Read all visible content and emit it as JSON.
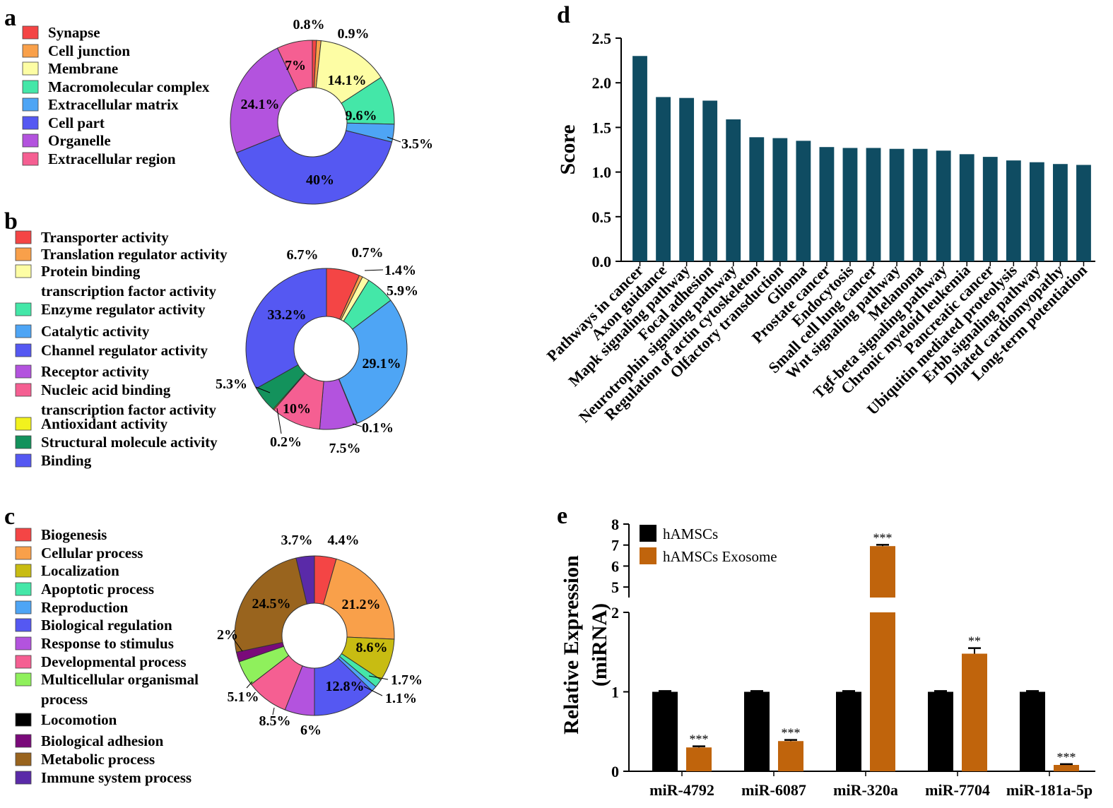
{
  "figure": {
    "panel_labels": [
      "a",
      "b",
      "c",
      "d",
      "e"
    ]
  },
  "chart_data": [
    {
      "panel": "a",
      "type": "pie",
      "style": "donut",
      "categories": [
        "Synapse",
        "Cell junction",
        "Membrane",
        "Macromolecular complex",
        "Extracellular matrix",
        "Cell part",
        "Organelle",
        "Extracellular region"
      ],
      "legend_labels": [
        "Synapse",
        "Cell junction",
        "Membrane",
        "Macromolecular complex",
        "Extracellular matrix",
        "Cell part",
        "Organelle",
        "Extracellular region"
      ],
      "values": [
        0.8,
        0.9,
        14.1,
        9.6,
        3.5,
        40,
        24.1,
        7
      ],
      "labels": [
        "0.8%",
        "0.9%",
        "14.1%",
        "9.6%",
        "3.5%",
        "40%",
        "24.1%",
        "7%"
      ],
      "colors": [
        "#f44545",
        "#f9a04a",
        "#fdfda4",
        "#44e7a8",
        "#4ea5f5",
        "#5558f2",
        "#b353de",
        "#f55f92"
      ]
    },
    {
      "panel": "b",
      "type": "pie",
      "style": "donut",
      "categories": [
        "Transporter activity",
        "Translation regulator activity",
        "Protein binding transcription factor activity",
        "Enzyme regulator activity",
        "Catalytic activity",
        "Channel regulator activity",
        "Receptor activity",
        "Nucleic acid binding transcription factor activity",
        "Antioxidant activity",
        "Structural molecule activity",
        "Binding"
      ],
      "legend_labels": [
        "Transporter activity",
        "Translation regulator activity",
        "Protein binding",
        "transcription factor activity",
        "Enzyme regulator activity",
        "Catalytic activity",
        "Channel regulator activity",
        "Receptor activity",
        "Nucleic acid binding",
        "transcription factor activity",
        "Antioxidant activity",
        "Structural molecule activity",
        "Binding"
      ],
      "values": [
        6.7,
        0.7,
        1.4,
        5.9,
        29.1,
        0.1,
        7.5,
        10,
        0.2,
        5.3,
        33.2
      ],
      "labels": [
        "6.7%",
        "0.7%",
        "1.4%",
        "5.9%",
        "29.1%",
        "0.1%",
        "7.5%",
        "10%",
        "0.2%",
        "5.3%",
        "33.2%"
      ],
      "colors": [
        "#f44545",
        "#f9a04a",
        "#fdfda4",
        "#44e7a8",
        "#4ea5f5",
        "#5558f2",
        "#b353de",
        "#f55f92",
        "#f2f21e",
        "#13925c",
        "#5558f2"
      ]
    },
    {
      "panel": "c",
      "type": "pie",
      "style": "donut",
      "categories": [
        "Biogenesis",
        "Cellular process",
        "Localization",
        "Apoptotic process",
        "Reproduction",
        "Biological regulation",
        "Response to stimulus",
        "Developmental process",
        "Multicellular organismal process",
        "Locomotion",
        "Biological adhesion",
        "Metabolic process",
        "Immune system process"
      ],
      "legend_labels": [
        "Biogenesis",
        "Cellular process",
        "Localization",
        "Apoptotic process",
        "Reproduction",
        "Biological regulation",
        "Response to stimulus",
        "Developmental process",
        "Multicellular organismal",
        "process",
        "Locomotion",
        "Biological adhesion",
        "Metabolic process",
        "Immune system process"
      ],
      "values": [
        4.4,
        21.2,
        8.6,
        1.7,
        1.1,
        12.8,
        6,
        8.5,
        5.1,
        0,
        2,
        24.5,
        3.7
      ],
      "labels": [
        "4.4%",
        "21.2%",
        "8.6%",
        "1.7%",
        "1.1%",
        "12.8%",
        "6%",
        "8.5%",
        "5.1%",
        "",
        "2%",
        "24.5%",
        "3.7%"
      ],
      "colors": [
        "#f44545",
        "#f9a04a",
        "#c8bc12",
        "#44e7a8",
        "#4ea5f5",
        "#5558f2",
        "#b353de",
        "#f55f92",
        "#8ff05c",
        "#000000",
        "#7a0a7a",
        "#99641e",
        "#5a2aa8"
      ]
    },
    {
      "panel": "d",
      "type": "bar",
      "categories": [
        "Pathways in cancer",
        "Axon guidance",
        "Mapk signaling pathway",
        "Focal adhesion",
        "Neurotrophin signaling pathway",
        "Regulation of actin cytoskeleton",
        "Olfactory transduction",
        "Glioma",
        "Prostate cancer",
        "Endocytosis",
        "Small cell lung cancer",
        "Wnt signaling pathway",
        "Melanoma",
        "Tgf-beta signaling pathway",
        "Chronic myeloid leukemia",
        "Pancreatic cancer",
        "Ubiquitin mediated proteolysis",
        "Erbb signaling pathway",
        "Dilated cardiomyopathy",
        "Long-term potentiation"
      ],
      "values": [
        2.3,
        1.84,
        1.83,
        1.8,
        1.59,
        1.39,
        1.38,
        1.35,
        1.28,
        1.27,
        1.27,
        1.26,
        1.26,
        1.24,
        1.2,
        1.17,
        1.13,
        1.11,
        1.09,
        1.08
      ],
      "ylabel": "Score",
      "xlabel": "",
      "ylim": [
        0,
        2.5
      ],
      "yticks": [
        "0.0",
        "0.5",
        "1.0",
        "1.5",
        "2.0",
        "2.5"
      ],
      "color": "#0f4c62"
    },
    {
      "panel": "e",
      "type": "bar",
      "categories": [
        "miR-4792",
        "miR-6087",
        "miR-320a",
        "miR-7704",
        "miR-181a-5p"
      ],
      "series": [
        {
          "name": "hAMSCs",
          "values": [
            1.0,
            1.0,
            1.0,
            1.0,
            1.0
          ],
          "errors": [
            0.01,
            0.01,
            0.01,
            0.01,
            0.01
          ],
          "color": "#000000",
          "sig": [
            "",
            "",
            "",
            "",
            ""
          ]
        },
        {
          "name": "hAMSCs Exosome",
          "values": [
            0.3,
            0.38,
            6.95,
            1.48,
            0.08
          ],
          "errors": [
            0.015,
            0.015,
            0.06,
            0.07,
            0.01
          ],
          "color": "#c0640c",
          "sig": [
            "***",
            "***",
            "***",
            "**",
            "***"
          ]
        }
      ],
      "ylabel": "Relative Expression (miRNA)",
      "ylabel_lines": [
        "Relative Expression",
        "(miRNA)"
      ],
      "xlabel": "",
      "ylim": [
        0,
        8
      ],
      "axis_break": [
        2,
        4.5
      ],
      "yticks_lower": [
        "0",
        "1",
        "2"
      ],
      "yticks_upper": [
        "5",
        "6",
        "7",
        "8"
      ]
    }
  ]
}
